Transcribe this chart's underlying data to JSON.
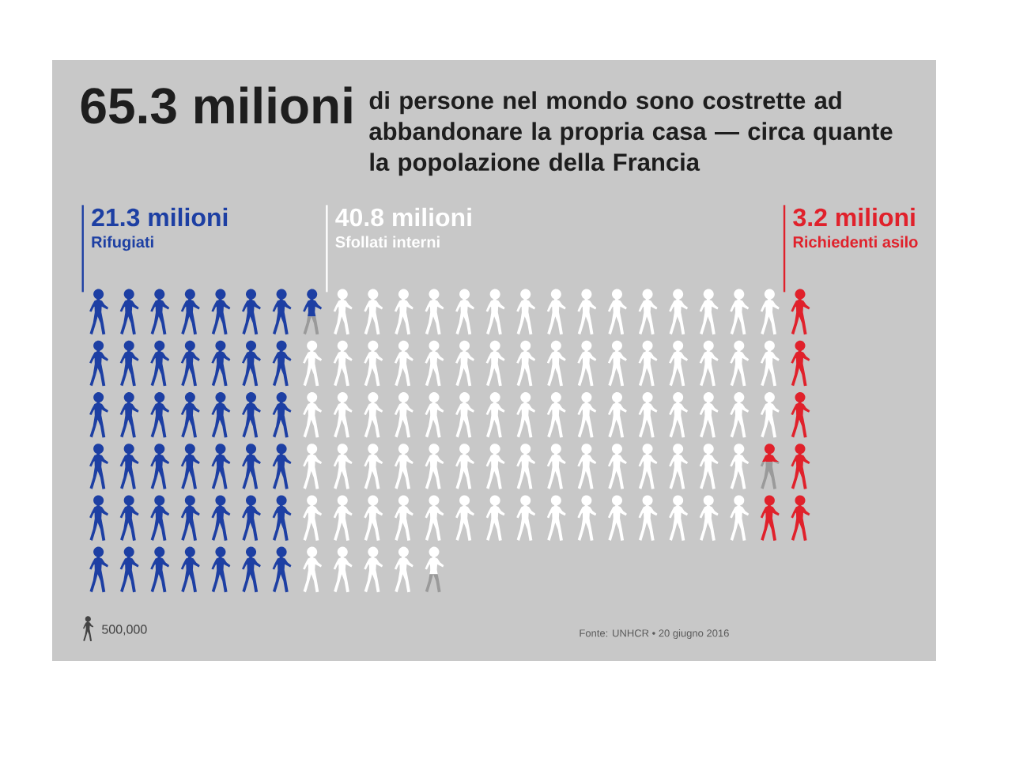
{
  "chart_data": {
    "type": "other",
    "title": "65.3 milioni",
    "subtitle": "di persone nel mondo sono costrette ad abbandonare la propria casa — circa quante la popolazione della Francia",
    "categories": [
      "Rifugiati",
      "Sfollati interni",
      "Richiedenti asilo"
    ],
    "values": [
      21.3,
      40.8,
      3.2
    ],
    "value_labels": [
      "21.3 milioni",
      "40.8 milioni",
      "3.2 milioni"
    ],
    "colors": [
      "#1d3fa3",
      "#ffffff",
      "#e0212b"
    ],
    "legend_title": "500,000",
    "annotations": [
      "Fonte: UNHCR • 20 giugno 2016"
    ]
  }
}
